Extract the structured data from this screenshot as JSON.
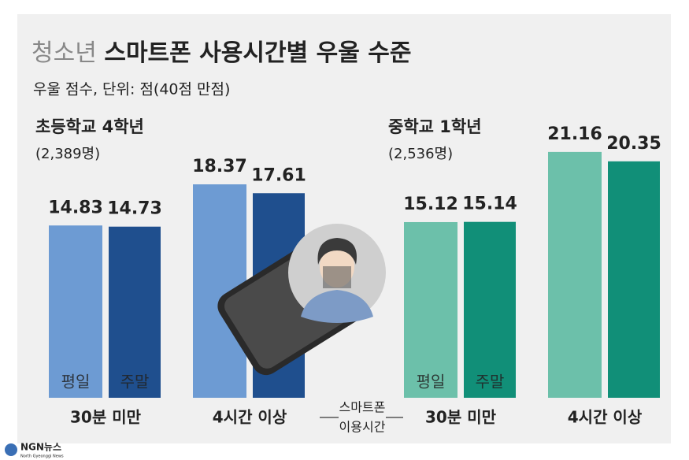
{
  "title": [
    "청소년",
    "스마트폰 사용시간별 우울 수준"
  ],
  "subtitle": "우울 점수, 단위: 점(40점 만점)",
  "x_label": [
    "스마트폰",
    "이용시간"
  ],
  "chart_data": [
    {
      "type": "bar",
      "title": "초등학교 4학년",
      "subtitle": "(2,389명)",
      "categories": [
        "30분 미만",
        "4시간 이상"
      ],
      "series": [
        {
          "name": "평일",
          "color": "#6d9bd3",
          "values": [
            14.83,
            18.37
          ]
        },
        {
          "name": "주말",
          "color": "#1f4f8e",
          "values": [
            14.73,
            17.61
          ]
        }
      ]
    },
    {
      "type": "bar",
      "title": "중학교 1학년",
      "subtitle": "(2,536명)",
      "categories": [
        "30분 미만",
        "4시간 이상"
      ],
      "series": [
        {
          "name": "평일",
          "color": "#6cc0aa",
          "values": [
            15.12,
            21.16
          ]
        },
        {
          "name": "주말",
          "color": "#118f78",
          "values": [
            15.14,
            20.35
          ]
        }
      ]
    }
  ],
  "footer": {
    "logo": "NGN뉴스",
    "tagline": "North Gyeonggi News"
  }
}
